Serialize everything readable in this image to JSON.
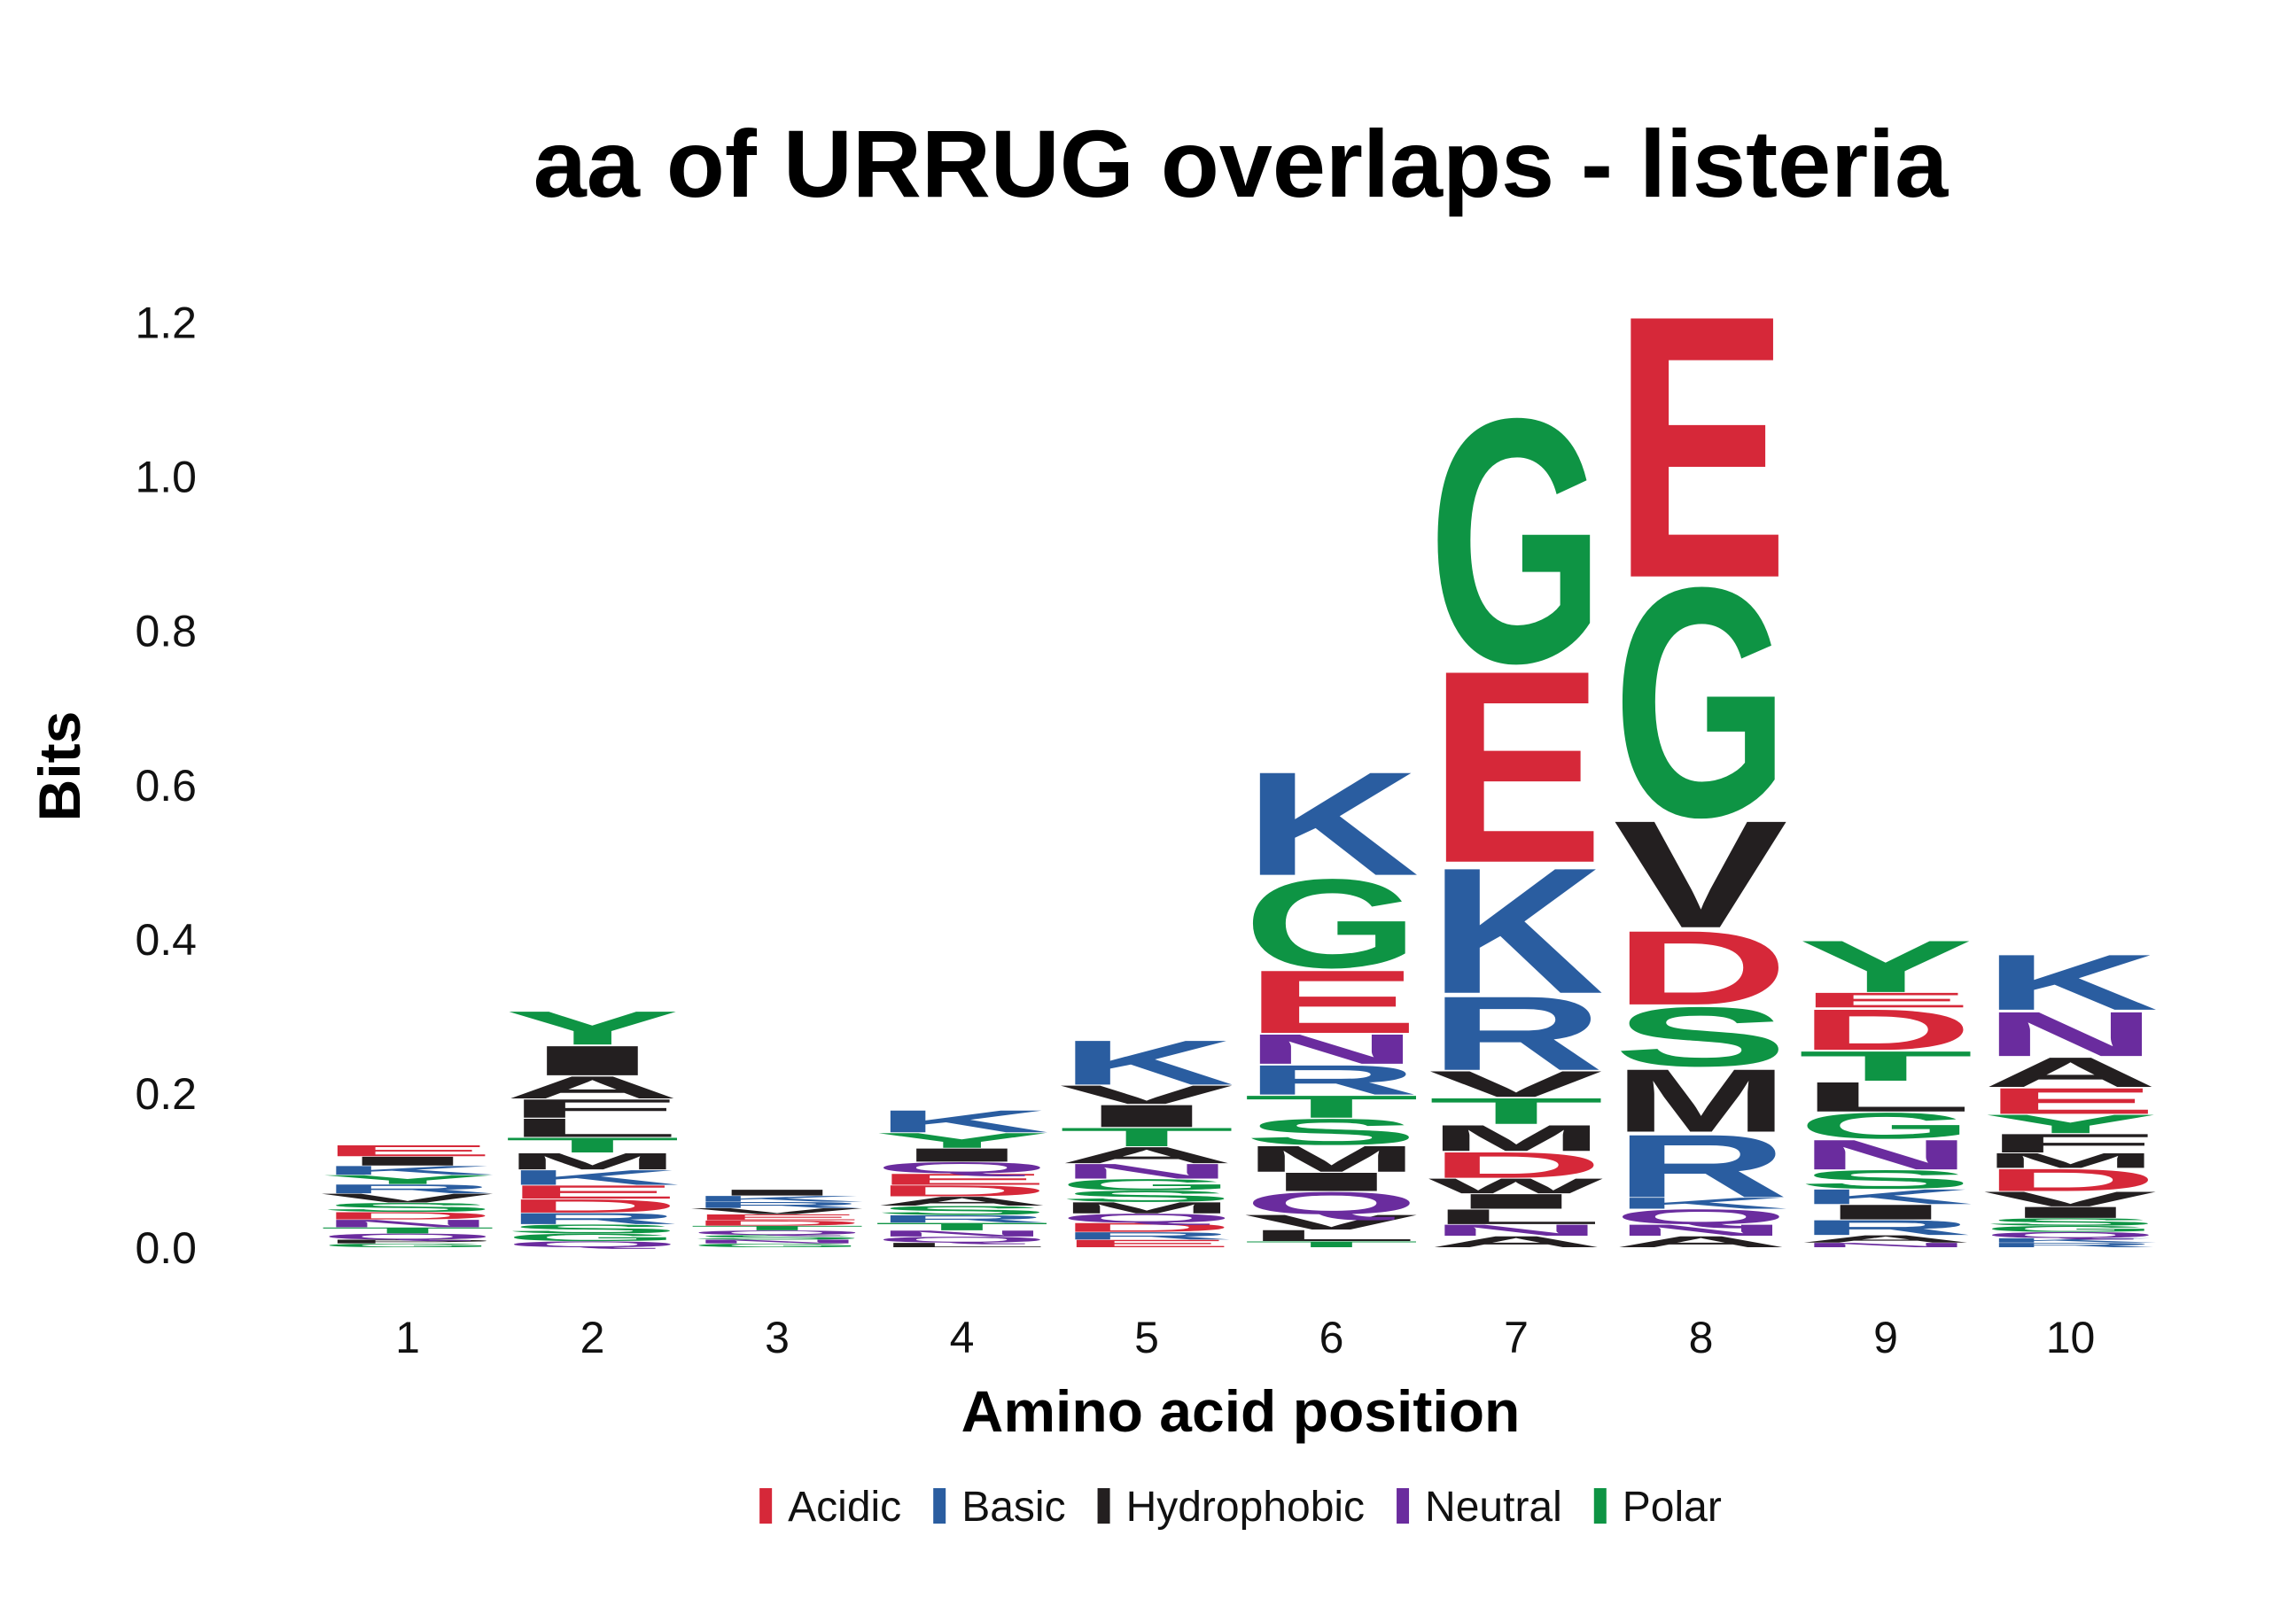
{
  "chart_data": {
    "type": "sequence-logo",
    "title": "aa of URRUG overlaps - listeria",
    "xlabel": "Amino acid position",
    "ylabel": "Bits",
    "ylim": [
      0,
      1.25
    ],
    "yticks": [
      0.0,
      0.2,
      0.4,
      0.6,
      0.8,
      1.0,
      1.2
    ],
    "ytick_labels": [
      "0.0",
      "0.2",
      "0.4",
      "0.6",
      "0.8",
      "1.0",
      "1.2"
    ],
    "positions": [
      "1",
      "2",
      "3",
      "4",
      "5",
      "6",
      "7",
      "8",
      "9",
      "10"
    ],
    "legend": [
      {
        "label": "Acidic",
        "color": "#D62839"
      },
      {
        "label": "Basic",
        "color": "#2A5DA0"
      },
      {
        "label": "Hydrophobic",
        "color": "#231F20"
      },
      {
        "label": "Neutral",
        "color": "#6A2C9E"
      },
      {
        "label": "Polar",
        "color": "#0E9444"
      }
    ],
    "class_colors": {
      "Acidic": "#D62839",
      "Basic": "#2A5DA0",
      "Hydrophobic": "#231F20",
      "Neutral": "#6A2C9E",
      "Polar": "#0E9444"
    },
    "stacks": [
      {
        "position": "1",
        "letters": [
          {
            "aa": "G",
            "class": "Polar",
            "bits": 0.005
          },
          {
            "aa": "P",
            "class": "Hydrophobic",
            "bits": 0.005
          },
          {
            "aa": "Q",
            "class": "Neutral",
            "bits": 0.008
          },
          {
            "aa": "T",
            "class": "Polar",
            "bits": 0.008
          },
          {
            "aa": "N",
            "class": "Neutral",
            "bits": 0.01
          },
          {
            "aa": "D",
            "class": "Acidic",
            "bits": 0.01
          },
          {
            "aa": "S",
            "class": "Polar",
            "bits": 0.012
          },
          {
            "aa": "V",
            "class": "Hydrophobic",
            "bits": 0.012
          },
          {
            "aa": "R",
            "class": "Basic",
            "bits": 0.012
          },
          {
            "aa": "Y",
            "class": "Polar",
            "bits": 0.012
          },
          {
            "aa": "K",
            "class": "Basic",
            "bits": 0.012
          },
          {
            "aa": "I",
            "class": "Hydrophobic",
            "bits": 0.012
          },
          {
            "aa": "E",
            "class": "Acidic",
            "bits": 0.015
          }
        ]
      },
      {
        "position": "2",
        "letters": [
          {
            "aa": "Q",
            "class": "Neutral",
            "bits": 0.008
          },
          {
            "aa": "G",
            "class": "Polar",
            "bits": 0.01
          },
          {
            "aa": "S",
            "class": "Polar",
            "bits": 0.012
          },
          {
            "aa": "R",
            "class": "Basic",
            "bits": 0.015
          },
          {
            "aa": "D",
            "class": "Acidic",
            "bits": 0.018
          },
          {
            "aa": "E",
            "class": "Acidic",
            "bits": 0.018
          },
          {
            "aa": "K",
            "class": "Basic",
            "bits": 0.02
          },
          {
            "aa": "M",
            "class": "Hydrophobic",
            "bits": 0.022
          },
          {
            "aa": "T",
            "class": "Polar",
            "bits": 0.02
          },
          {
            "aa": "L",
            "class": "Hydrophobic",
            "bits": 0.025
          },
          {
            "aa": "F",
            "class": "Hydrophobic",
            "bits": 0.025
          },
          {
            "aa": "A",
            "class": "Hydrophobic",
            "bits": 0.03
          },
          {
            "aa": "I",
            "class": "Hydrophobic",
            "bits": 0.04
          },
          {
            "aa": "Y",
            "class": "Polar",
            "bits": 0.045
          }
        ]
      },
      {
        "position": "3",
        "letters": [
          {
            "aa": "G",
            "class": "Polar",
            "bits": 0.005
          },
          {
            "aa": "N",
            "class": "Neutral",
            "bits": 0.005
          },
          {
            "aa": "S",
            "class": "Polar",
            "bits": 0.006
          },
          {
            "aa": "Q",
            "class": "Neutral",
            "bits": 0.006
          },
          {
            "aa": "T",
            "class": "Polar",
            "bits": 0.006
          },
          {
            "aa": "D",
            "class": "Acidic",
            "bits": 0.007
          },
          {
            "aa": "E",
            "class": "Acidic",
            "bits": 0.008
          },
          {
            "aa": "V",
            "class": "Hydrophobic",
            "bits": 0.008
          },
          {
            "aa": "R",
            "class": "Basic",
            "bits": 0.008
          },
          {
            "aa": "K",
            "class": "Basic",
            "bits": 0.008
          },
          {
            "aa": "I",
            "class": "Hydrophobic",
            "bits": 0.008
          }
        ]
      },
      {
        "position": "4",
        "letters": [
          {
            "aa": "L",
            "class": "Hydrophobic",
            "bits": 0.006
          },
          {
            "aa": "Q",
            "class": "Neutral",
            "bits": 0.008
          },
          {
            "aa": "N",
            "class": "Neutral",
            "bits": 0.008
          },
          {
            "aa": "T",
            "class": "Polar",
            "bits": 0.01
          },
          {
            "aa": "R",
            "class": "Basic",
            "bits": 0.01
          },
          {
            "aa": "S",
            "class": "Polar",
            "bits": 0.012
          },
          {
            "aa": "A",
            "class": "Hydrophobic",
            "bits": 0.012
          },
          {
            "aa": "D",
            "class": "Acidic",
            "bits": 0.015
          },
          {
            "aa": "E",
            "class": "Acidic",
            "bits": 0.015
          },
          {
            "aa": "Q",
            "class": "Neutral",
            "bits": 0.015
          },
          {
            "aa": "I",
            "class": "Hydrophobic",
            "bits": 0.018
          },
          {
            "aa": "Y",
            "class": "Polar",
            "bits": 0.02
          },
          {
            "aa": "K",
            "class": "Basic",
            "bits": 0.03
          }
        ]
      },
      {
        "position": "5",
        "letters": [
          {
            "aa": "E",
            "class": "Acidic",
            "bits": 0.01
          },
          {
            "aa": "R",
            "class": "Basic",
            "bits": 0.01
          },
          {
            "aa": "D",
            "class": "Acidic",
            "bits": 0.012
          },
          {
            "aa": "Q",
            "class": "Neutral",
            "bits": 0.012
          },
          {
            "aa": "M",
            "class": "Hydrophobic",
            "bits": 0.015
          },
          {
            "aa": "S",
            "class": "Polar",
            "bits": 0.015
          },
          {
            "aa": "G",
            "class": "Polar",
            "bits": 0.015
          },
          {
            "aa": "N",
            "class": "Neutral",
            "bits": 0.02
          },
          {
            "aa": "A",
            "class": "Hydrophobic",
            "bits": 0.022
          },
          {
            "aa": "T",
            "class": "Polar",
            "bits": 0.025
          },
          {
            "aa": "I",
            "class": "Hydrophobic",
            "bits": 0.03
          },
          {
            "aa": "V",
            "class": "Hydrophobic",
            "bits": 0.025
          },
          {
            "aa": "K",
            "class": "Basic",
            "bits": 0.06
          }
        ]
      },
      {
        "position": "6",
        "letters": [
          {
            "aa": "T",
            "class": "Polar",
            "bits": 0.008
          },
          {
            "aa": "L",
            "class": "Hydrophobic",
            "bits": 0.015
          },
          {
            "aa": "V",
            "class": "Hydrophobic",
            "bits": 0.02
          },
          {
            "aa": "Q",
            "class": "Neutral",
            "bits": 0.03
          },
          {
            "aa": "I",
            "class": "Hydrophobic",
            "bits": 0.025
          },
          {
            "aa": "M",
            "class": "Hydrophobic",
            "bits": 0.035
          },
          {
            "aa": "S",
            "class": "Polar",
            "bits": 0.035
          },
          {
            "aa": "T",
            "class": "Polar",
            "bits": 0.03
          },
          {
            "aa": "R",
            "class": "Basic",
            "bits": 0.04
          },
          {
            "aa": "N",
            "class": "Neutral",
            "bits": 0.04
          },
          {
            "aa": "E",
            "class": "Acidic",
            "bits": 0.085
          },
          {
            "aa": "G",
            "class": "Polar",
            "bits": 0.12
          },
          {
            "aa": "K",
            "class": "Basic",
            "bits": 0.14
          }
        ]
      },
      {
        "position": "7",
        "letters": [
          {
            "aa": "A",
            "class": "Hydrophobic",
            "bits": 0.015
          },
          {
            "aa": "N",
            "class": "Neutral",
            "bits": 0.015
          },
          {
            "aa": "L",
            "class": "Hydrophobic",
            "bits": 0.02
          },
          {
            "aa": "I",
            "class": "Hydrophobic",
            "bits": 0.02
          },
          {
            "aa": "W",
            "class": "Hydrophobic",
            "bits": 0.02
          },
          {
            "aa": "D",
            "class": "Acidic",
            "bits": 0.035
          },
          {
            "aa": "M",
            "class": "Hydrophobic",
            "bits": 0.035
          },
          {
            "aa": "T",
            "class": "Polar",
            "bits": 0.035
          },
          {
            "aa": "V",
            "class": "Hydrophobic",
            "bits": 0.035
          },
          {
            "aa": "R",
            "class": "Basic",
            "bits": 0.1
          },
          {
            "aa": "K",
            "class": "Basic",
            "bits": 0.17
          },
          {
            "aa": "E",
            "class": "Acidic",
            "bits": 0.26
          },
          {
            "aa": "G",
            "class": "Polar",
            "bits": 0.33
          }
        ]
      },
      {
        "position": "8",
        "letters": [
          {
            "aa": "A",
            "class": "Hydrophobic",
            "bits": 0.015
          },
          {
            "aa": "N",
            "class": "Neutral",
            "bits": 0.015
          },
          {
            "aa": "Q",
            "class": "Neutral",
            "bits": 0.02
          },
          {
            "aa": "K",
            "class": "Basic",
            "bits": 0.015
          },
          {
            "aa": "R",
            "class": "Basic",
            "bits": 0.085
          },
          {
            "aa": "M",
            "class": "Hydrophobic",
            "bits": 0.085
          },
          {
            "aa": "S",
            "class": "Polar",
            "bits": 0.08
          },
          {
            "aa": "D",
            "class": "Acidic",
            "bits": 0.1
          },
          {
            "aa": "V",
            "class": "Hydrophobic",
            "bits": 0.145
          },
          {
            "aa": "G",
            "class": "Polar",
            "bits": 0.31
          },
          {
            "aa": "E",
            "class": "Acidic",
            "bits": 0.355
          }
        ]
      },
      {
        "position": "9",
        "letters": [
          {
            "aa": "N",
            "class": "Neutral",
            "bits": 0.006
          },
          {
            "aa": "A",
            "class": "Hydrophobic",
            "bits": 0.01
          },
          {
            "aa": "R",
            "class": "Basic",
            "bits": 0.02
          },
          {
            "aa": "I",
            "class": "Hydrophobic",
            "bits": 0.02
          },
          {
            "aa": "K",
            "class": "Basic",
            "bits": 0.02
          },
          {
            "aa": "S",
            "class": "Polar",
            "bits": 0.025
          },
          {
            "aa": "N",
            "class": "Neutral",
            "bits": 0.04
          },
          {
            "aa": "G",
            "class": "Polar",
            "bits": 0.035
          },
          {
            "aa": "L",
            "class": "Hydrophobic",
            "bits": 0.04
          },
          {
            "aa": "T",
            "class": "Polar",
            "bits": 0.04
          },
          {
            "aa": "D",
            "class": "Acidic",
            "bits": 0.055
          },
          {
            "aa": "E",
            "class": "Acidic",
            "bits": 0.02
          },
          {
            "aa": "Y",
            "class": "Polar",
            "bits": 0.07
          }
        ]
      },
      {
        "position": "10",
        "letters": [
          {
            "aa": "R",
            "class": "Basic",
            "bits": 0.006
          },
          {
            "aa": "K",
            "class": "Basic",
            "bits": 0.006
          },
          {
            "aa": "Q",
            "class": "Neutral",
            "bits": 0.008
          },
          {
            "aa": "G",
            "class": "Polar",
            "bits": 0.008
          },
          {
            "aa": "S",
            "class": "Polar",
            "bits": 0.01
          },
          {
            "aa": "I",
            "class": "Hydrophobic",
            "bits": 0.015
          },
          {
            "aa": "V",
            "class": "Hydrophobic",
            "bits": 0.02
          },
          {
            "aa": "D",
            "class": "Acidic",
            "bits": 0.03
          },
          {
            "aa": "M",
            "class": "Hydrophobic",
            "bits": 0.02
          },
          {
            "aa": "F",
            "class": "Hydrophobic",
            "bits": 0.025
          },
          {
            "aa": "Y",
            "class": "Polar",
            "bits": 0.025
          },
          {
            "aa": "E",
            "class": "Acidic",
            "bits": 0.035
          },
          {
            "aa": "A",
            "class": "Hydrophobic",
            "bits": 0.04
          },
          {
            "aa": "N",
            "class": "Neutral",
            "bits": 0.06
          },
          {
            "aa": "K",
            "class": "Basic",
            "bits": 0.075
          }
        ]
      }
    ]
  }
}
